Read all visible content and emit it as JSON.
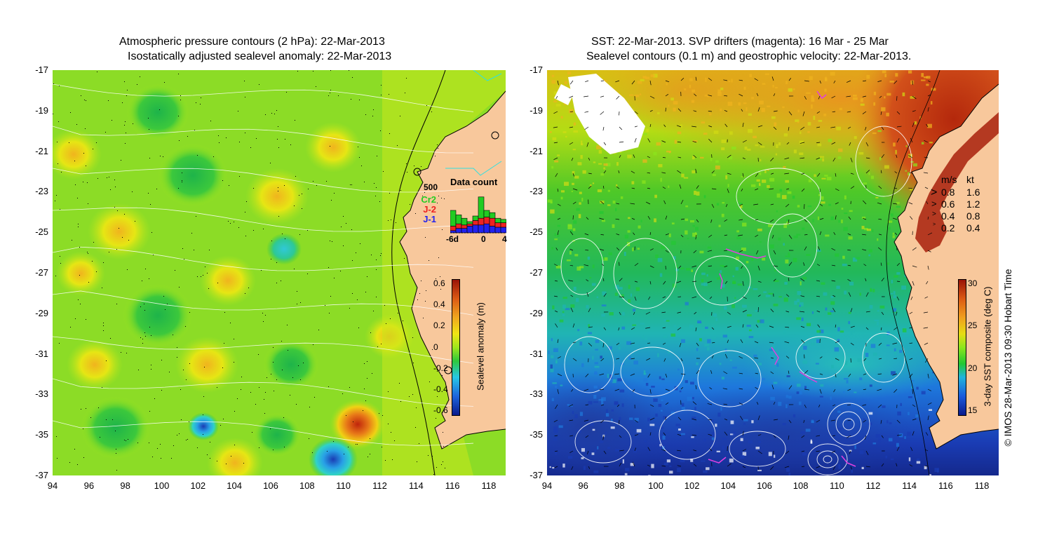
{
  "left_panel": {
    "title_line1": "Atmospheric pressure contours (2 hPa): 22-Mar-2013",
    "title_line2": "Isostatically adjusted sealevel anomaly: 22-Mar-2013",
    "y_ticks": [
      "-17",
      "-19",
      "-21",
      "-23",
      "-25",
      "-27",
      "-29",
      "-31",
      "-33",
      "-35",
      "-37"
    ],
    "x_ticks": [
      "94",
      "96",
      "98",
      "100",
      "102",
      "104",
      "106",
      "108",
      "110",
      "112",
      "114",
      "116",
      "118"
    ],
    "inset": {
      "title": "Data count",
      "ymax_label": "500",
      "legend": [
        {
          "label": "Cr2",
          "color": "#22cc22"
        },
        {
          "label": "J-2",
          "color": "#ee2222"
        },
        {
          "label": "J-1",
          "color": "#2222ee"
        }
      ],
      "x_ticks": [
        "-6d",
        "0",
        "4"
      ],
      "bars": [
        {
          "j1": 0.1,
          "j2": 0.2,
          "cr2": 0.7
        },
        {
          "j1": 0.2,
          "j2": 0.2,
          "cr2": 0.4
        },
        {
          "j1": 0.2,
          "j2": 0.15,
          "cr2": 0.3
        },
        {
          "j1": 0.3,
          "j2": 0.1,
          "cr2": 0.1
        },
        {
          "j1": 0.35,
          "j2": 0.2,
          "cr2": 0.2
        },
        {
          "j1": 0.35,
          "j2": 0.3,
          "cr2": 0.95
        },
        {
          "j1": 0.4,
          "j2": 0.3,
          "cr2": 0.3
        },
        {
          "j1": 0.3,
          "j2": 0.35,
          "cr2": 0.25
        },
        {
          "j1": 0.25,
          "j2": 0.2,
          "cr2": 0.2
        },
        {
          "j1": 0.25,
          "j2": 0.2,
          "cr2": 0.15
        }
      ]
    },
    "colorbar": {
      "label": "Sealevel anomaly (m)",
      "ticks": [
        "0.6",
        "0.4",
        "0.2",
        "0",
        "-0.2",
        "-0.4",
        "-0.6"
      ]
    }
  },
  "right_panel": {
    "title_line1": "SST: 22-Mar-2013. SVP drifters (magenta): 16 Mar - 25 Mar",
    "title_line2": "Sealevel contours (0.1 m) and geostrophic velocity: 22-Mar-2013.",
    "y_ticks": [
      "-17",
      "-19",
      "-21",
      "-23",
      "-25",
      "-27",
      "-29",
      "-31",
      "-33",
      "-35",
      "-37"
    ],
    "x_ticks": [
      "94",
      "96",
      "98",
      "100",
      "102",
      "104",
      "106",
      "108",
      "110",
      "112",
      "114",
      "116",
      "118"
    ],
    "velocity_legend": {
      "headers": [
        "m/s",
        "kt"
      ],
      "rows": [
        {
          "ms": "0.8",
          "kt": "1.6"
        },
        {
          "ms": "0.6",
          "kt": "1.2"
        },
        {
          "ms": "0.4",
          "kt": "0.8"
        },
        {
          "ms": "0.2",
          "kt": "0.4"
        }
      ]
    },
    "colorbar": {
      "label": "3-day SST composite (deg C)",
      "ticks": [
        "30",
        "25",
        "20",
        "15"
      ]
    }
  },
  "credit": "© IMOS 28-Mar-2013 09:30 Hobart Time",
  "colors": {
    "land": "#f8c89c",
    "sla_ramp": [
      "#0a1a8c",
      "#1e64dc",
      "#28c8e6",
      "#2ec83c",
      "#9ee61c",
      "#f0e614",
      "#f0a81e",
      "#dc5a14",
      "#9a1408"
    ],
    "sst_ramp": [
      "#0a1a8c",
      "#1a5adc",
      "#20b4dc",
      "#22c832",
      "#8ce61c",
      "#e6dc14",
      "#f0a01e",
      "#dc5a14",
      "#9a1408"
    ],
    "drifters": "#e040e0",
    "cyan_contour": "#30e0e0"
  }
}
